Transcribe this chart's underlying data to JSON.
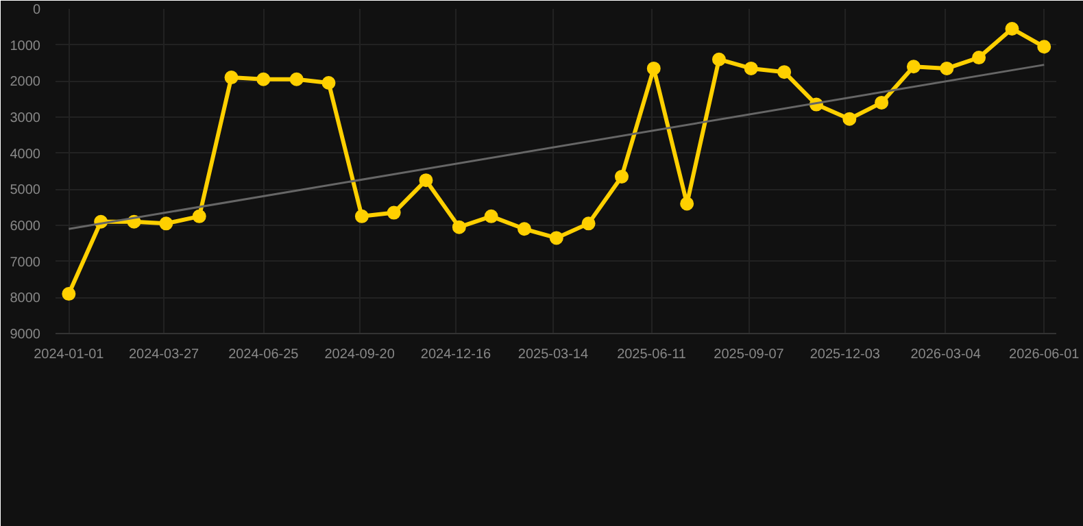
{
  "chart_data": {
    "type": "line",
    "x": [
      "2024-01-01",
      "2024-01-30",
      "2024-02-29",
      "2024-03-29",
      "2024-04-28",
      "2024-05-27",
      "2024-06-25",
      "2024-07-25",
      "2024-08-23",
      "2024-09-22",
      "2024-10-21",
      "2024-11-19",
      "2024-12-19",
      "2025-01-17",
      "2025-02-16",
      "2025-03-17",
      "2025-04-15",
      "2025-05-15",
      "2025-06-13",
      "2025-07-13",
      "2025-08-11",
      "2025-09-09",
      "2025-10-09",
      "2025-11-07",
      "2025-12-07",
      "2026-01-05",
      "2026-02-03",
      "2026-03-05",
      "2026-04-03",
      "2026-05-03",
      "2026-06-01"
    ],
    "series": [
      {
        "color": "#ffd000",
        "marker": "circle",
        "values": [
          7900,
          5900,
          5900,
          5950,
          5750,
          1900,
          1950,
          1950,
          2050,
          5750,
          5650,
          4750,
          6050,
          5750,
          6100,
          6350,
          5950,
          4650,
          1650,
          5400,
          1400,
          1650,
          1750,
          2650,
          3050,
          2600,
          1600,
          1650,
          1350,
          550,
          1050
        ]
      },
      {
        "color": "#666666",
        "marker": "none",
        "x": [
          "2024-01-01",
          "2026-06-01"
        ],
        "values": [
          6100,
          1550
        ]
      }
    ],
    "ylim": [
      9000,
      0
    ],
    "yticks": [
      0,
      1000,
      2000,
      3000,
      4000,
      5000,
      6000,
      7000,
      8000,
      9000
    ],
    "xlim": [
      "2023-12-20",
      "2026-06-12"
    ],
    "xticks": [
      "2024-01-01",
      "2024-03-27",
      "2024-06-25",
      "2024-09-20",
      "2024-12-16",
      "2025-03-14",
      "2025-06-11",
      "2025-09-07",
      "2025-12-03",
      "2026-03-04",
      "2026-06-01"
    ],
    "grid": true
  }
}
